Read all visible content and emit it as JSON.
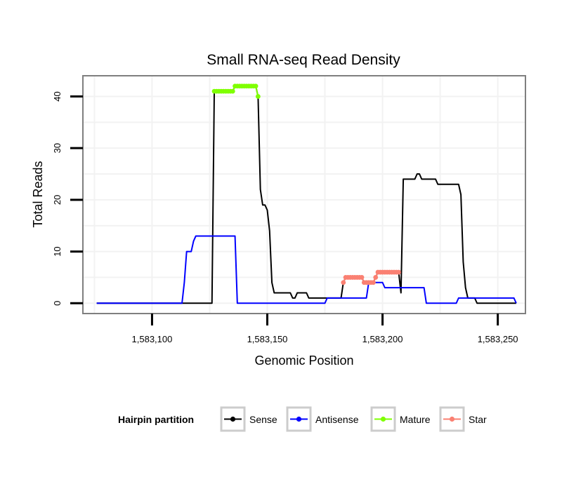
{
  "chart_data": {
    "type": "line",
    "title": "Small RNA-seq Read Density",
    "xlabel": "Genomic Position",
    "ylabel": "Total Reads",
    "xlim": [
      1583070,
      1583262
    ],
    "ylim": [
      -2,
      44
    ],
    "x_ticks": [
      1583100,
      1583150,
      1583200,
      1583250
    ],
    "x_tick_labels": [
      "1,583,100",
      "1,583,150",
      "1,583,200",
      "1,583,250"
    ],
    "y_ticks": [
      0,
      10,
      20,
      30,
      40
    ],
    "y_tick_labels": [
      "0",
      "10",
      "20",
      "30",
      "40"
    ],
    "grid": true,
    "legend": {
      "title": "Hairpin partition",
      "position": "bottom",
      "entries": [
        "Sense",
        "Antisense",
        "Mature",
        "Star"
      ]
    },
    "colors": {
      "Sense": "#000000",
      "Antisense": "#0000ff",
      "Mature": "#7fff00",
      "Star": "#fa8072"
    },
    "series": [
      {
        "name": "Sense",
        "style": "line",
        "points": [
          [
            1583076,
            0
          ],
          [
            1583126,
            0
          ],
          [
            1583127,
            41
          ],
          [
            1583128,
            41
          ],
          [
            1583130,
            41
          ],
          [
            1583135,
            41
          ],
          [
            1583136,
            42
          ],
          [
            1583139,
            42
          ],
          [
            1583143,
            42
          ],
          [
            1583145,
            42
          ],
          [
            1583146,
            40
          ],
          [
            1583147,
            22
          ],
          [
            1583148,
            19
          ],
          [
            1583149,
            19
          ],
          [
            1583150,
            18
          ],
          [
            1583151,
            14
          ],
          [
            1583152,
            4
          ],
          [
            1583153,
            2
          ],
          [
            1583160,
            2
          ],
          [
            1583161,
            1
          ],
          [
            1583162,
            1
          ],
          [
            1583163,
            2
          ],
          [
            1583167,
            2
          ],
          [
            1583168,
            1
          ],
          [
            1583182,
            1
          ],
          [
            1583183,
            4
          ],
          [
            1583184,
            5
          ],
          [
            1583191,
            5
          ],
          [
            1583192,
            4
          ],
          [
            1583196,
            4
          ],
          [
            1583197,
            5
          ],
          [
            1583198,
            6
          ],
          [
            1583207,
            6
          ],
          [
            1583208,
            2
          ],
          [
            1583209,
            24
          ],
          [
            1583214,
            24
          ],
          [
            1583215,
            25
          ],
          [
            1583216,
            25
          ],
          [
            1583217,
            24
          ],
          [
            1583223,
            24
          ],
          [
            1583224,
            23
          ],
          [
            1583233,
            23
          ],
          [
            1583234,
            21
          ],
          [
            1583235,
            8
          ],
          [
            1583236,
            3
          ],
          [
            1583237,
            1
          ],
          [
            1583240,
            1
          ],
          [
            1583241,
            0
          ],
          [
            1583258,
            0
          ]
        ]
      },
      {
        "name": "Antisense",
        "style": "line",
        "points": [
          [
            1583076,
            0
          ],
          [
            1583113,
            0
          ],
          [
            1583114,
            4
          ],
          [
            1583115,
            10
          ],
          [
            1583117,
            10
          ],
          [
            1583118,
            12
          ],
          [
            1583119,
            13
          ],
          [
            1583136,
            13
          ],
          [
            1583137,
            0
          ],
          [
            1583175,
            0
          ],
          [
            1583176,
            1
          ],
          [
            1583193,
            1
          ],
          [
            1583194,
            4
          ],
          [
            1583200,
            4
          ],
          [
            1583201,
            3
          ],
          [
            1583218,
            3
          ],
          [
            1583219,
            0
          ],
          [
            1583232,
            0
          ],
          [
            1583233,
            1
          ],
          [
            1583257,
            1
          ],
          [
            1583258,
            0
          ]
        ]
      },
      {
        "name": "Mature",
        "style": "points",
        "points": [
          [
            1583127,
            41
          ],
          [
            1583128,
            41
          ],
          [
            1583129,
            41
          ],
          [
            1583130,
            41
          ],
          [
            1583131,
            41
          ],
          [
            1583132,
            41
          ],
          [
            1583133,
            41
          ],
          [
            1583134,
            41
          ],
          [
            1583135,
            41
          ],
          [
            1583136,
            42
          ],
          [
            1583137,
            42
          ],
          [
            1583138,
            42
          ],
          [
            1583139,
            42
          ],
          [
            1583140,
            42
          ],
          [
            1583141,
            42
          ],
          [
            1583142,
            42
          ],
          [
            1583143,
            42
          ],
          [
            1583144,
            42
          ],
          [
            1583145,
            42
          ],
          [
            1583146,
            40
          ]
        ]
      },
      {
        "name": "Star",
        "style": "points",
        "points": [
          [
            1583183,
            4
          ],
          [
            1583184,
            5
          ],
          [
            1583185,
            5
          ],
          [
            1583186,
            5
          ],
          [
            1583187,
            5
          ],
          [
            1583188,
            5
          ],
          [
            1583189,
            5
          ],
          [
            1583190,
            5
          ],
          [
            1583191,
            5
          ],
          [
            1583192,
            4
          ],
          [
            1583193,
            4
          ],
          [
            1583194,
            4
          ],
          [
            1583195,
            4
          ],
          [
            1583196,
            4
          ],
          [
            1583197,
            5
          ],
          [
            1583198,
            6
          ],
          [
            1583199,
            6
          ],
          [
            1583200,
            6
          ],
          [
            1583201,
            6
          ],
          [
            1583202,
            6
          ],
          [
            1583203,
            6
          ],
          [
            1583204,
            6
          ],
          [
            1583205,
            6
          ],
          [
            1583206,
            6
          ],
          [
            1583207,
            6
          ]
        ]
      }
    ]
  }
}
